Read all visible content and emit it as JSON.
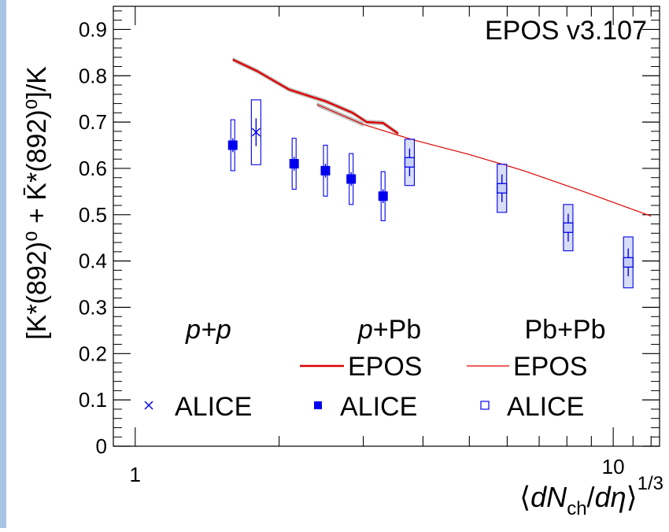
{
  "chart_data": {
    "type": "scatter",
    "title": "EPOS v3.107",
    "xlabel_parts": {
      "open": "⟨",
      "dN": "dN",
      "ch": "ch",
      "slash": "/",
      "deta": "dη",
      "close": "⟩",
      "power": "1/3"
    },
    "ylabel": "[K*(892)⁰ + K̄*(892)⁰]/K",
    "x_scale": "log",
    "xlim": [
      0.9,
      12.5
    ],
    "ylim": [
      0,
      0.95
    ],
    "x_ticks": [
      {
        "value": 1,
        "label": "1"
      },
      {
        "value": 10,
        "label": "10"
      }
    ],
    "y_ticks": [
      {
        "value": 0,
        "label": "0"
      },
      {
        "value": 0.1,
        "label": "0.1"
      },
      {
        "value": 0.2,
        "label": "0.2"
      },
      {
        "value": 0.3,
        "label": "0.3"
      },
      {
        "value": 0.4,
        "label": "0.4"
      },
      {
        "value": 0.5,
        "label": "0.5"
      },
      {
        "value": 0.6,
        "label": "0.6"
      },
      {
        "value": 0.7,
        "label": "0.7"
      },
      {
        "value": 0.8,
        "label": "0.8"
      },
      {
        "value": 0.9,
        "label": "0.9"
      }
    ],
    "series": [
      {
        "system": "pp",
        "name": "ALICE",
        "marker": "cross",
        "color": "#0000ee",
        "points": [
          {
            "x": 1.79,
            "y": 0.678,
            "stat": 0.03,
            "sys": 0.07
          }
        ]
      },
      {
        "system": "pPb",
        "name": "ALICE",
        "marker": "filled-square",
        "color": "#0000ee",
        "points": [
          {
            "x": 1.6,
            "y": 0.65,
            "stat": 0.015,
            "sys": 0.055
          },
          {
            "x": 2.15,
            "y": 0.61,
            "stat": 0.015,
            "sys": 0.055
          },
          {
            "x": 2.5,
            "y": 0.595,
            "stat": 0.015,
            "sys": 0.055
          },
          {
            "x": 2.83,
            "y": 0.577,
            "stat": 0.015,
            "sys": 0.055
          },
          {
            "x": 3.3,
            "y": 0.54,
            "stat": 0.015,
            "sys": 0.053
          }
        ]
      },
      {
        "system": "PbPb",
        "name": "ALICE",
        "marker": "open-square",
        "color": "#0000ee",
        "points": [
          {
            "x": 3.75,
            "y": 0.613,
            "stat": 0.03,
            "sys": 0.05
          },
          {
            "x": 5.85,
            "y": 0.557,
            "stat": 0.03,
            "sys": 0.052
          },
          {
            "x": 8.05,
            "y": 0.472,
            "stat": 0.03,
            "sys": 0.05
          },
          {
            "x": 10.75,
            "y": 0.397,
            "stat": 0.03,
            "sys": 0.055
          }
        ]
      },
      {
        "system": "pPb",
        "name": "EPOS",
        "type": "line",
        "color": "#dd0000",
        "width": 2.4,
        "points": [
          [
            1.6,
            0.835
          ],
          [
            1.8,
            0.81
          ],
          [
            2.1,
            0.77
          ],
          [
            2.5,
            0.745
          ],
          [
            2.85,
            0.72
          ],
          [
            3.05,
            0.7
          ],
          [
            3.3,
            0.698
          ],
          [
            3.55,
            0.675
          ]
        ]
      },
      {
        "system": "PbPb",
        "name": "EPOS",
        "type": "line",
        "color": "#dd0000",
        "width": 1.2,
        "points": [
          [
            2.4,
            0.738
          ],
          [
            3.0,
            0.695
          ],
          [
            3.8,
            0.662
          ],
          [
            5.0,
            0.63
          ],
          [
            6.5,
            0.595
          ],
          [
            8.5,
            0.553
          ],
          [
            12.0,
            0.497
          ]
        ]
      }
    ],
    "legend": {
      "headers": [
        "p+p",
        "p+Pb",
        "Pb+Pb"
      ],
      "rows": [
        {
          "model_label": "EPOS"
        },
        {
          "data_label": "ALICE"
        }
      ]
    }
  }
}
